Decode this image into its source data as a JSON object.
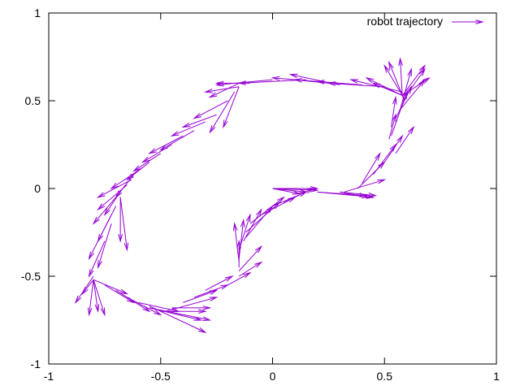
{
  "chart_data": {
    "type": "vector-field",
    "legend": {
      "label": "robot trajectory",
      "placement": "top-right"
    },
    "series_color": "#9400d3",
    "xlim": [
      -1,
      1
    ],
    "ylim": [
      -1,
      1
    ],
    "x_ticks": [
      {
        "value": -1,
        "label": "-1"
      },
      {
        "value": -0.5,
        "label": "-0.5"
      },
      {
        "value": 0,
        "label": "0"
      },
      {
        "value": 0.5,
        "label": "0.5"
      },
      {
        "value": 1,
        "label": "1"
      }
    ],
    "y_ticks": [
      {
        "value": -1,
        "label": "-1"
      },
      {
        "value": -0.5,
        "label": "-0.5"
      },
      {
        "value": 0,
        "label": "0"
      },
      {
        "value": 0.5,
        "label": "0.5"
      },
      {
        "value": 1,
        "label": "1"
      }
    ],
    "grid": false,
    "arrows": [
      [
        0.0,
        0.0,
        0.2,
        0.0
      ],
      [
        0.0,
        0.0,
        0.15,
        -0.02
      ],
      [
        0.0,
        0.0,
        0.2,
        -0.01
      ],
      [
        0.0,
        0.0,
        0.12,
        -0.03
      ],
      [
        0.2,
        -0.02,
        0.45,
        -0.05
      ],
      [
        0.2,
        -0.02,
        0.42,
        -0.04
      ],
      [
        0.3,
        -0.02,
        0.46,
        -0.04
      ],
      [
        0.3,
        -0.02,
        0.43,
        -0.05
      ],
      [
        0.32,
        -0.02,
        0.5,
        0.05
      ],
      [
        0.38,
        0.0,
        0.5,
        0.15
      ],
      [
        0.4,
        0.03,
        0.48,
        0.2
      ],
      [
        0.45,
        0.08,
        0.55,
        0.25
      ],
      [
        0.5,
        0.15,
        0.58,
        0.3
      ],
      [
        0.55,
        0.2,
        0.63,
        0.35
      ],
      [
        0.52,
        0.28,
        0.55,
        0.42
      ],
      [
        0.53,
        0.3,
        0.6,
        0.55
      ],
      [
        0.53,
        0.35,
        0.55,
        0.52
      ],
      [
        0.55,
        0.4,
        0.62,
        0.58
      ],
      [
        0.57,
        0.45,
        0.68,
        0.62
      ],
      [
        0.57,
        0.45,
        0.62,
        0.68
      ],
      [
        0.58,
        0.5,
        0.68,
        0.68
      ],
      [
        0.58,
        0.52,
        0.57,
        0.74
      ],
      [
        0.58,
        0.53,
        0.5,
        0.7
      ],
      [
        0.58,
        0.53,
        0.45,
        0.6
      ],
      [
        0.58,
        0.53,
        0.42,
        0.63
      ],
      [
        0.58,
        0.53,
        0.68,
        0.7
      ],
      [
        0.58,
        0.53,
        0.7,
        0.63
      ],
      [
        0.58,
        0.53,
        0.52,
        0.72
      ],
      [
        0.58,
        0.55,
        0.35,
        0.62
      ],
      [
        0.5,
        0.58,
        0.25,
        0.6
      ],
      [
        0.4,
        0.59,
        0.2,
        0.61
      ],
      [
        0.3,
        0.59,
        0.08,
        0.65
      ],
      [
        0.25,
        0.6,
        0.1,
        0.62
      ],
      [
        0.2,
        0.61,
        0.0,
        0.63
      ],
      [
        0.15,
        0.62,
        -0.15,
        0.6
      ],
      [
        0.0,
        0.62,
        -0.25,
        0.59
      ],
      [
        -0.1,
        0.6,
        -0.25,
        0.6
      ],
      [
        -0.15,
        0.6,
        -0.28,
        0.52
      ],
      [
        -0.15,
        0.58,
        -0.3,
        0.55
      ],
      [
        -0.15,
        0.58,
        -0.22,
        0.35
      ],
      [
        -0.17,
        0.55,
        -0.28,
        0.32
      ],
      [
        -0.2,
        0.5,
        -0.35,
        0.4
      ],
      [
        -0.25,
        0.42,
        -0.4,
        0.35
      ],
      [
        -0.3,
        0.38,
        -0.45,
        0.3
      ],
      [
        -0.35,
        0.33,
        -0.5,
        0.22
      ],
      [
        -0.4,
        0.3,
        -0.55,
        0.2
      ],
      [
        -0.45,
        0.25,
        -0.58,
        0.15
      ],
      [
        -0.5,
        0.2,
        -0.62,
        0.1
      ],
      [
        -0.55,
        0.15,
        -0.65,
        0.05
      ],
      [
        -0.58,
        0.12,
        -0.72,
        0.0
      ],
      [
        -0.62,
        0.08,
        -0.7,
        -0.05
      ],
      [
        -0.63,
        0.05,
        -0.78,
        -0.05
      ],
      [
        -0.65,
        0.02,
        -0.78,
        -0.12
      ],
      [
        -0.67,
        0.0,
        -0.75,
        -0.15
      ],
      [
        -0.68,
        -0.02,
        -0.8,
        -0.2
      ],
      [
        -0.68,
        -0.05,
        -0.68,
        -0.3
      ],
      [
        -0.68,
        -0.05,
        -0.65,
        -0.35
      ],
      [
        -0.7,
        -0.1,
        -0.78,
        -0.3
      ],
      [
        -0.72,
        -0.15,
        -0.82,
        -0.4
      ],
      [
        -0.72,
        -0.2,
        -0.78,
        -0.45
      ],
      [
        -0.75,
        -0.3,
        -0.82,
        -0.5
      ],
      [
        -0.8,
        -0.5,
        -0.88,
        -0.65
      ],
      [
        -0.8,
        -0.52,
        -0.85,
        -0.6
      ],
      [
        -0.8,
        -0.52,
        -0.78,
        -0.7
      ],
      [
        -0.8,
        -0.52,
        -0.82,
        -0.72
      ],
      [
        -0.8,
        -0.52,
        -0.75,
        -0.72
      ],
      [
        -0.8,
        -0.52,
        -0.65,
        -0.6
      ],
      [
        -0.75,
        -0.55,
        -0.62,
        -0.65
      ],
      [
        -0.7,
        -0.58,
        -0.55,
        -0.7
      ],
      [
        -0.65,
        -0.62,
        -0.5,
        -0.72
      ],
      [
        -0.6,
        -0.65,
        -0.42,
        -0.7
      ],
      [
        -0.55,
        -0.67,
        -0.3,
        -0.82
      ],
      [
        -0.55,
        -0.68,
        -0.32,
        -0.75
      ],
      [
        -0.55,
        -0.68,
        -0.28,
        -0.75
      ],
      [
        -0.5,
        -0.7,
        -0.3,
        -0.7
      ],
      [
        -0.48,
        -0.7,
        -0.25,
        -0.62
      ],
      [
        -0.45,
        -0.68,
        -0.28,
        -0.68
      ],
      [
        -0.4,
        -0.65,
        -0.25,
        -0.58
      ],
      [
        -0.35,
        -0.62,
        -0.2,
        -0.55
      ],
      [
        -0.3,
        -0.58,
        -0.18,
        -0.5
      ],
      [
        -0.2,
        -0.55,
        -0.1,
        -0.48
      ],
      [
        -0.15,
        -0.5,
        -0.05,
        -0.42
      ],
      [
        -0.15,
        -0.47,
        -0.05,
        -0.33
      ],
      [
        -0.15,
        -0.45,
        -0.15,
        -0.3
      ],
      [
        -0.15,
        -0.42,
        -0.17,
        -0.2
      ],
      [
        -0.15,
        -0.4,
        -0.13,
        -0.18
      ],
      [
        -0.15,
        -0.35,
        -0.1,
        -0.15
      ],
      [
        -0.13,
        -0.3,
        -0.05,
        -0.12
      ],
      [
        -0.12,
        -0.28,
        0.0,
        -0.1
      ],
      [
        -0.12,
        -0.25,
        0.03,
        -0.08
      ],
      [
        -0.1,
        -0.2,
        0.05,
        -0.05
      ],
      [
        -0.05,
        -0.15,
        0.1,
        -0.05
      ],
      [
        0.0,
        -0.1,
        0.15,
        -0.02
      ],
      [
        0.05,
        -0.08,
        0.18,
        0.0
      ]
    ]
  }
}
